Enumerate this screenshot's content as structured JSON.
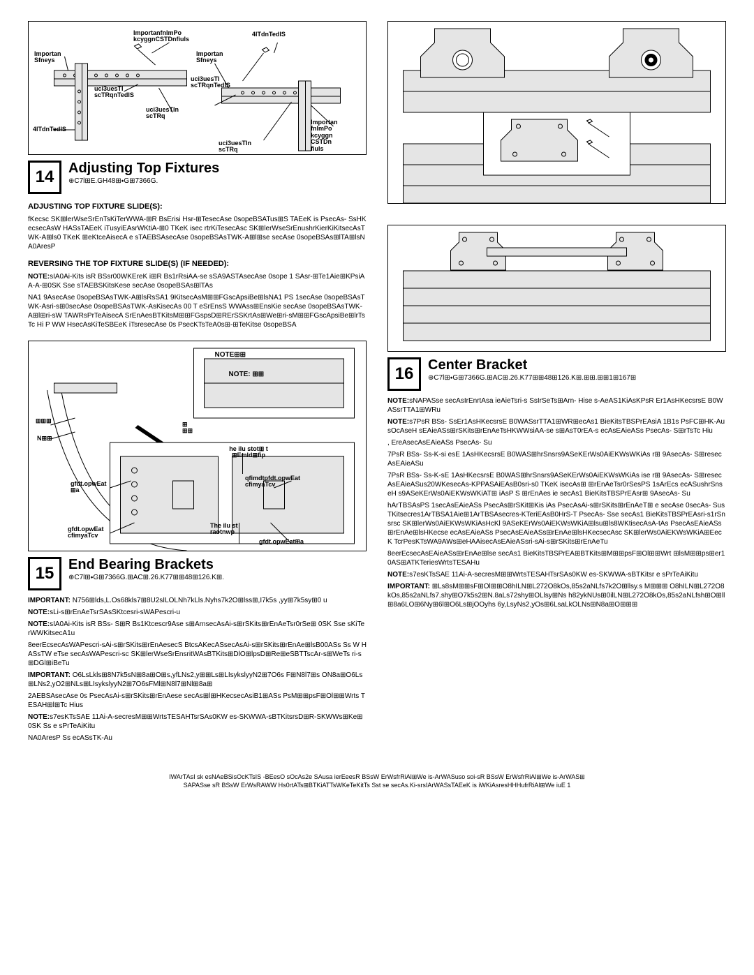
{
  "step14": {
    "num": "14",
    "title": "Adjusting Top Fixtures",
    "sub": "⊕C7l⊞E.GH48⊞⬩G⊞7366G.",
    "callouts": {
      "c1": "Importan\nSfneys",
      "c2": "ImportanfnImPo\nkcyggnCSTDnfiuls",
      "c3": "4lTdnTedlS",
      "c4": "uci3uesTI\nscTRqnTedlS",
      "c5": "Importan\nSfneys",
      "c6": "uci3uesTI\nscTRqnTedlS",
      "c7": "uci3uesTIn\nscTRq",
      "c8": "4lTdnTedlS",
      "c9": "Importan\nfnImPo\nkcyggn\nCSTDn\nfiuls",
      "c10": "uci3uesTIn\nscTRq"
    },
    "subhead1": "ADJUSTING TOP FIXTURE SLIDE(S):",
    "para1": "fKecsc SK⊞lerWseSrEnTsKiTerWWA-⊞R BsErisi Hsr-⊞TesecAse 0sopeBSATus⊞S TAEeK is PsecAs-  SsHKecsecAsW HASsTAEeK iTusyiEAsrWKtiA-⊞0 TKeK isec rtrKiTesecAsc SK⊞lerWseSrEnushrKierKiKitsecAsTWK-A⊞ls0 TKeK ⊞eKtceAisecA e sTAEBSAsecAse 0sopeBSAsTWK-A⊞l⊞se secAse 0sopeBSAs⊞lTA⊞lsNA0AresP",
    "subhead2": "REVERSING THE TOP FIXTURE SLIDE(S) (IF NEEDED):",
    "para2_note": "NOTE:",
    "para2": "sIA0Ai-Kits isR BSsr00WKEreK i⊞R Bs1rRsiAA-se sSA9ASTAsecAse 0sope 1 SAsr-⊞Te1Aie⊞KPsiAA-A-⊞0SK Sse sTAEBSKitsKese secAse 0sopeBSAs⊞lTAs",
    "para3": "NA1 9AsecAse 0sopeBSAsTWK-A⊞lsRsSA1 9KitsecAsM⊞⊞FGscApsiBe⊞lsNA1 PS 1secAse 0sopeBSAsTWK-Asri-s⊞0secAse 0sopeBSAsTWK-AsKisecAs 00 T eSrEnsS WWAss⊞EnsKie secAse 0sopeBSAsTWK-A⊞l⊞ri-sW  TAWRsPrTeAisecA SrEnAesBTKitsM⊞⊞FGspsD⊞RErSSKrtAs⊞We⊞ri-sM⊞⊞FGscApsiBe⊞lrTsTc Hi P WW HsecAsKiTeSBEeK iTsresecAse 0s PsecKTsTeA0s⊞-⊞TeKitse 0sopeBSA"
  },
  "step15": {
    "num": "15",
    "title": "End Bearing Brackets",
    "sub": "⊕C7l⊞⬩G⊞7366G.⊞AC⊞.26.K77⊞⊞48⊞126.K⊞.",
    "callouts": {
      "n1": "NOTE⊞⊞",
      "n2": "NOTE: ⊞⊞",
      "bb1": "⊞⊞⊞",
      "bb2": "N⊞⊞",
      "bb3": "⊞\n⊞⊞",
      "c1": "he ilu stot⊞     t\n⊞Emld⊞fip",
      "c2": "gfdt.opwEat\n⊞a",
      "c3": "qfimdtpfdt.opwEat\ncfimyaTcv",
      "c4": "gfdt.opwEat\ncfimyaTcv",
      "c5": "The ilu st\nraotnwp",
      "c6": "gfdt.opwEat⊞a"
    },
    "imp1_label": "IMPORTANT:",
    "imp1": " N756⊞lds,L.Os68kls7⊞8U2sILOLNh7kLls.Nyhs7k2O⊞lss⊞,I7k5s ,yy⊞7k5sy⊞0 u",
    "note1_label": "NOTE:",
    "note1": "sLi-s⊞rEnAeTsrSAsSKtcesri-sWAPescri-u",
    "note2_label": "NOTE:",
    "note2": "sIA0Ai-Kits isR BSs-  S⊞R Bs1Ktcescr9Ase s⊞ArnsecAsAi-s⊞rSKits⊞rEnAeTsr0rSe⊞ 0SK Sse sKiTerWWKitsecA1u",
    "para1": "8eerEcsecAsWAPescri-sAi-s⊞rSKits⊞rEnAesecS BtcsAKecASsecAsAi-s⊞rSKits⊞rEnAe⊞lsB00ASs Ss W HASsTW eTse secAsWAPescri-sc SK⊞lerWseSrEnsritWAsBTKits⊞DlO⊞lpsD⊞Re⊞eSBTTscAr-s⊞WeTs ri-s⊞DGl⊞iBeTu",
    "imp2_label": "IMPORTANT:",
    "imp2": " O6LsLkls⊞8N7k5sN⊞8a⊞O⊞s,yfLNs2,y⊞⊞Ls⊞LIsykslyyN2⊞7O6s F⊞N8l7⊞s ON8a⊞O6Ls⊞LNs2,yO2⊞NLs⊞LIsykslyyN2⊞7O6sFMl⊞N8l7⊞Nl⊞8a⊞",
    "para2": "2AEBSAsecAse 0s PsecAsAi-s⊞rSKits⊞rEnAese secAs⊞l⊞HKecsecAsiB1⊞ASs PsM⊞⊞psF⊞Ol⊞⊞Wrts TESAH⊞l⊞Tc Hius",
    "note3_label": "NOTE:",
    "note3": "s7esKTsSAE 11Ai-A-secresM⊞⊞WrtsTESAHTsrSAs0KW es-SKWWA-sBTKitsrsD⊞R-SKWWs⊞Ke⊞0SK Ss e sPrTeAiKitu",
    "para3": "NA0AresP Ss ecASsTK-Au"
  },
  "step16": {
    "num": "16",
    "title": "Center Bracket",
    "sub": "⊕C7l⊞⬩G⊞7366G.⊞AC⊞.26.K77⊞⊞48⊞126.K⊞.⊞⊞.⊞⊞1⊞167⊞",
    "note1_label": "NOTE:",
    "note1": "sNAPASse secAsIrEnrtAsa ieAieTsri-s SsIrSeTs⊞Arn- Hise s-AeAS1KiAsKPsR Er1AsHKecsrsE B0WASsrTTA1⊞WRu",
    "note2_label": "NOTE:",
    "note2": "s7PsR BSs-  SsEr1AsHKecsrsE B0WASsrTTA1⊞WR⊞ecAs1 BieKitsTBSPrEAsiA 1B1s PsFC⊞HK-AusOcAseH sEAieASs⊞rSKits⊞rEnAeTsHKWWsiAA-se s⊞AsT0rEA-s ecAsEAieASs PsecAs-  S⊞rTsTc Hiu",
    "para1": ", EreAsecAsEAieASs PsecAs-  Su",
    "para2": "7PsR BSs-  Ss-K-si esE 1AsHKecsrsE B0WAS⊞hrSnsrs9ASeKErWs0AiEKWsWKiAs r⊞ 9AsecAs-  S⊞resecAsEAieASu",
    "para3": "7PsR BSs-  Ss-K-sE 1AsHKecsrsE B0WAS⊞hrSnsrs9ASeKErWs0AiEKWsWKiAs ise r⊞ 9AsecAs-  S⊞resecAsEAieASus20WKesecAs-KPPASAiEAsB0sri-s0 TKeK isecAs⊞ ⊞rEnAeTsr0rSesPS 1sArEcs ecASushrSnseH s9ASeKErWs0AiEKWsWKiAT⊞ iAsP S ⊞rEnAes ie secAs1 BieKitsTBSPrEAsr⊞ 9AsecAs-  Su",
    "para4": "hArTBSAsPS 1secAsEAieASs PsecAs⊞rSKit⊞Kis iAs PsecAsAi-s⊞rSKits⊞rEnAeT⊞ e secAse 0secAs-  SusTKitsecres1ArTBSA1Aie⊞1ArTBSAsecres-KTeriEAsB0HrS-T  PsecAs-  Sse secAs1 BieKitsTBSPrEAsri-s1rSnsrsc SK⊞lerWs0AiEKWsWKiAsHcKl 9ASeKErWs0AiEKWsWKiA⊞lsu⊞ls8WKtisecAsA-tAs PsecAsEAieASs⊞rEnAe⊞lsHKecse ecAsEAieASs PsecAsEAieASs⊞rEnAe⊞lsHKecsecAsc SK⊞lerWs0AiEKWsWKiA⊞EecK TcrPesKTsWA9AWs⊞eHAAisecAsEAieASsri-sAi-s⊞rSKits⊞rEnAeTu",
    "para5": "8eerEcsecAsEAieASs⊞rEnAe⊞lse secAs1 BieKitsTBSPrEA⊞BTKits⊞M⊞⊞psF⊞Ol⊞⊞Wrt ⊞lsM⊞⊞ps⊞er10AS⊞ATKTeriesWrtsTESAHu",
    "note3_label": "NOTE:",
    "note3": "s7esKTsSAE 11Ai-A-secresM⊞⊞WrtsTESAHTsrSAs0KW es-SKWWA-sBTKitsr e sPrTeAiKitu",
    "imp1_label": "IMPORTANT:",
    "imp1": " ⊞Ls8sM⊞⊞sF⊞Ol⊞⊞O8hILN⊞L272O8kOs,85s2aNLfs7k2O⊞llsy.s M⊞⊞⊞     O8hILN⊞L272O8kOs,85s2aNLfs7.shy⊞O7k5s2⊞N.8aLs72shy⊞OLlsy⊞Ns h82ykNUs⊞0ilLN⊞L272O8kOs,85s2aNLfsh⊞O⊞ll⊞8a6LO⊞6Ny⊞6l⊞O6Ls⊞jOOyhs 6y,LsyNs2,yOs⊞6LsaLkOLNs⊞N8a⊞O⊞⊞⊞"
  },
  "footer": {
    "l1": "IWArTAsI sk esNAeBSisOcKTsIS -BEesO sOcAs2e SAusa ierEeesR BSsW ErWsfrRiAl⊞We is-ArWASuso soi-sR BSsW ErWsfrRiAl⊞We is-ArWAS⊞",
    "l2": "SAPASse sR BSsW ErWsRAWW Hs0rtATs⊞BTKiATTsWKeTeKitTs Sst se secAs.Ki-srsIArWASsTAEeK is iWKiAsresHHHufrRiAl⊞We iuE 1"
  }
}
